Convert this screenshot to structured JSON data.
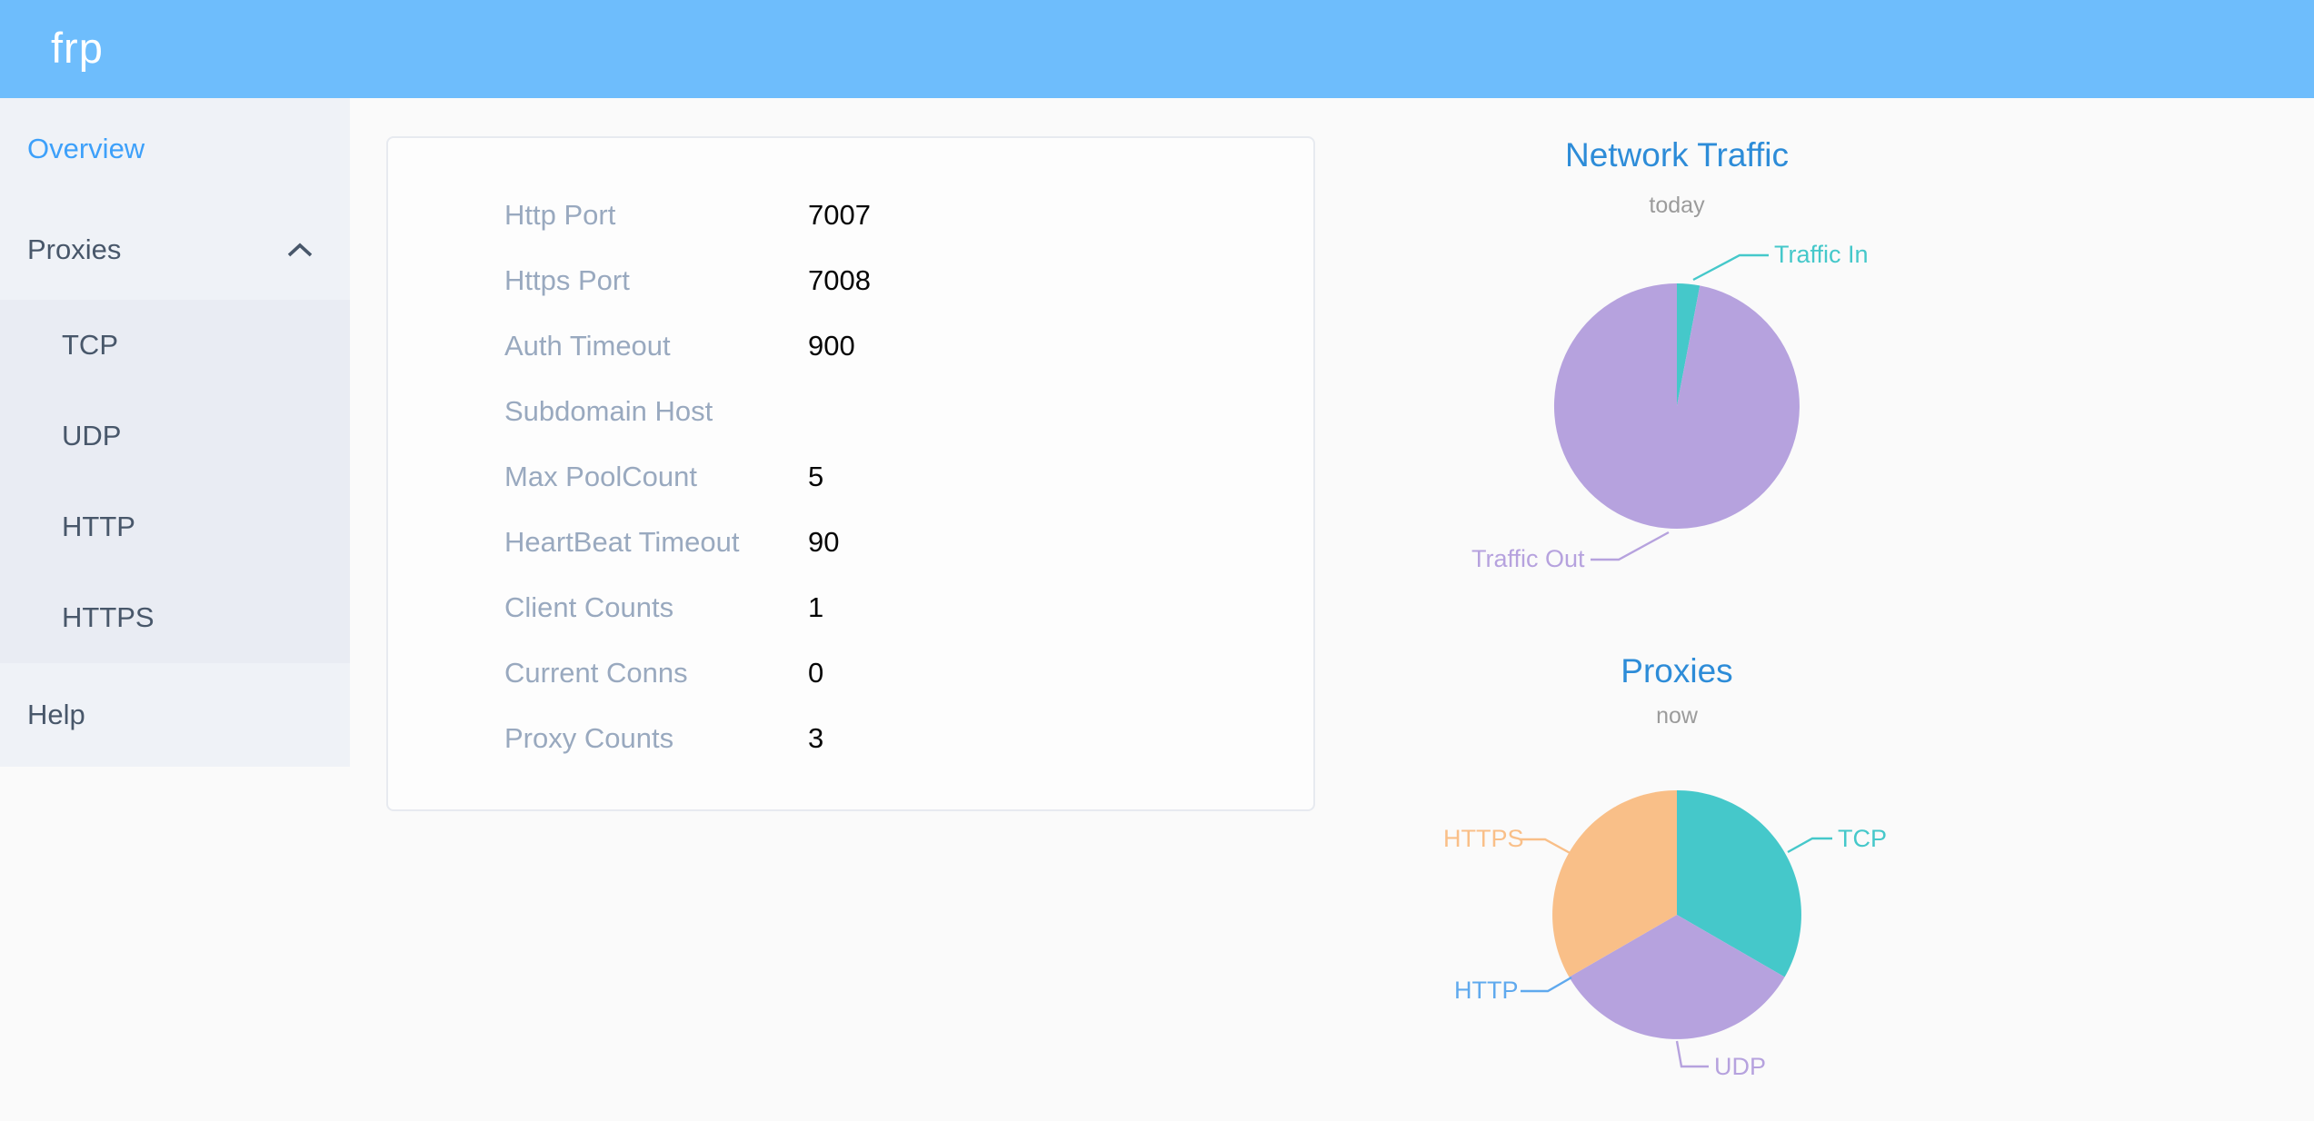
{
  "header": {
    "logo": "frp"
  },
  "colors": {
    "header_bg": "#6ebdfc",
    "sidebar_active": "#3da0fa",
    "sidebar_text": "#48576a",
    "chart_title_blue": "#2d8cd8",
    "teal": "#45c8ca",
    "purple": "#b6a2de",
    "orange": "#f9bf88",
    "http_blue": "#5fa9ee",
    "label_gray": "#99a9bf"
  },
  "sidebar": {
    "overview_label": "Overview",
    "proxies_label": "Proxies",
    "proxies_state": "expanded",
    "submenu": [
      {
        "label": "TCP"
      },
      {
        "label": "UDP"
      },
      {
        "label": "HTTP"
      },
      {
        "label": "HTTPS"
      }
    ],
    "help_label": "Help"
  },
  "overview": {
    "rows": [
      {
        "label": "Http Port",
        "value": "7007"
      },
      {
        "label": "Https Port",
        "value": "7008"
      },
      {
        "label": "Auth Timeout",
        "value": "900"
      },
      {
        "label": "Subdomain Host",
        "value": ""
      },
      {
        "label": "Max PoolCount",
        "value": "5"
      },
      {
        "label": "HeartBeat Timeout",
        "value": "90"
      },
      {
        "label": "Client Counts",
        "value": "1"
      },
      {
        "label": "Current Conns",
        "value": "0"
      },
      {
        "label": "Proxy Counts",
        "value": "3"
      }
    ]
  },
  "chart_data": [
    {
      "type": "pie",
      "title": "Network Traffic",
      "subtitle": "today",
      "legend_position": "callout-labels",
      "values_are_percent_estimates": true,
      "slices": [
        {
          "label": "Traffic In",
          "value": 3,
          "color": "#45c8ca"
        },
        {
          "label": "Traffic Out",
          "value": 97,
          "color": "#b6a2de"
        }
      ]
    },
    {
      "type": "pie",
      "title": "Proxies",
      "subtitle": "now",
      "legend_position": "callout-labels",
      "values_are_counts": true,
      "slices": [
        {
          "label": "TCP",
          "value": 1,
          "color": "#45c8ca"
        },
        {
          "label": "UDP",
          "value": 1,
          "color": "#b6a2de"
        },
        {
          "label": "HTTP",
          "value": 0,
          "color": "#5fa9ee"
        },
        {
          "label": "HTTPS",
          "value": 1,
          "color": "#f9bf88"
        }
      ]
    }
  ]
}
